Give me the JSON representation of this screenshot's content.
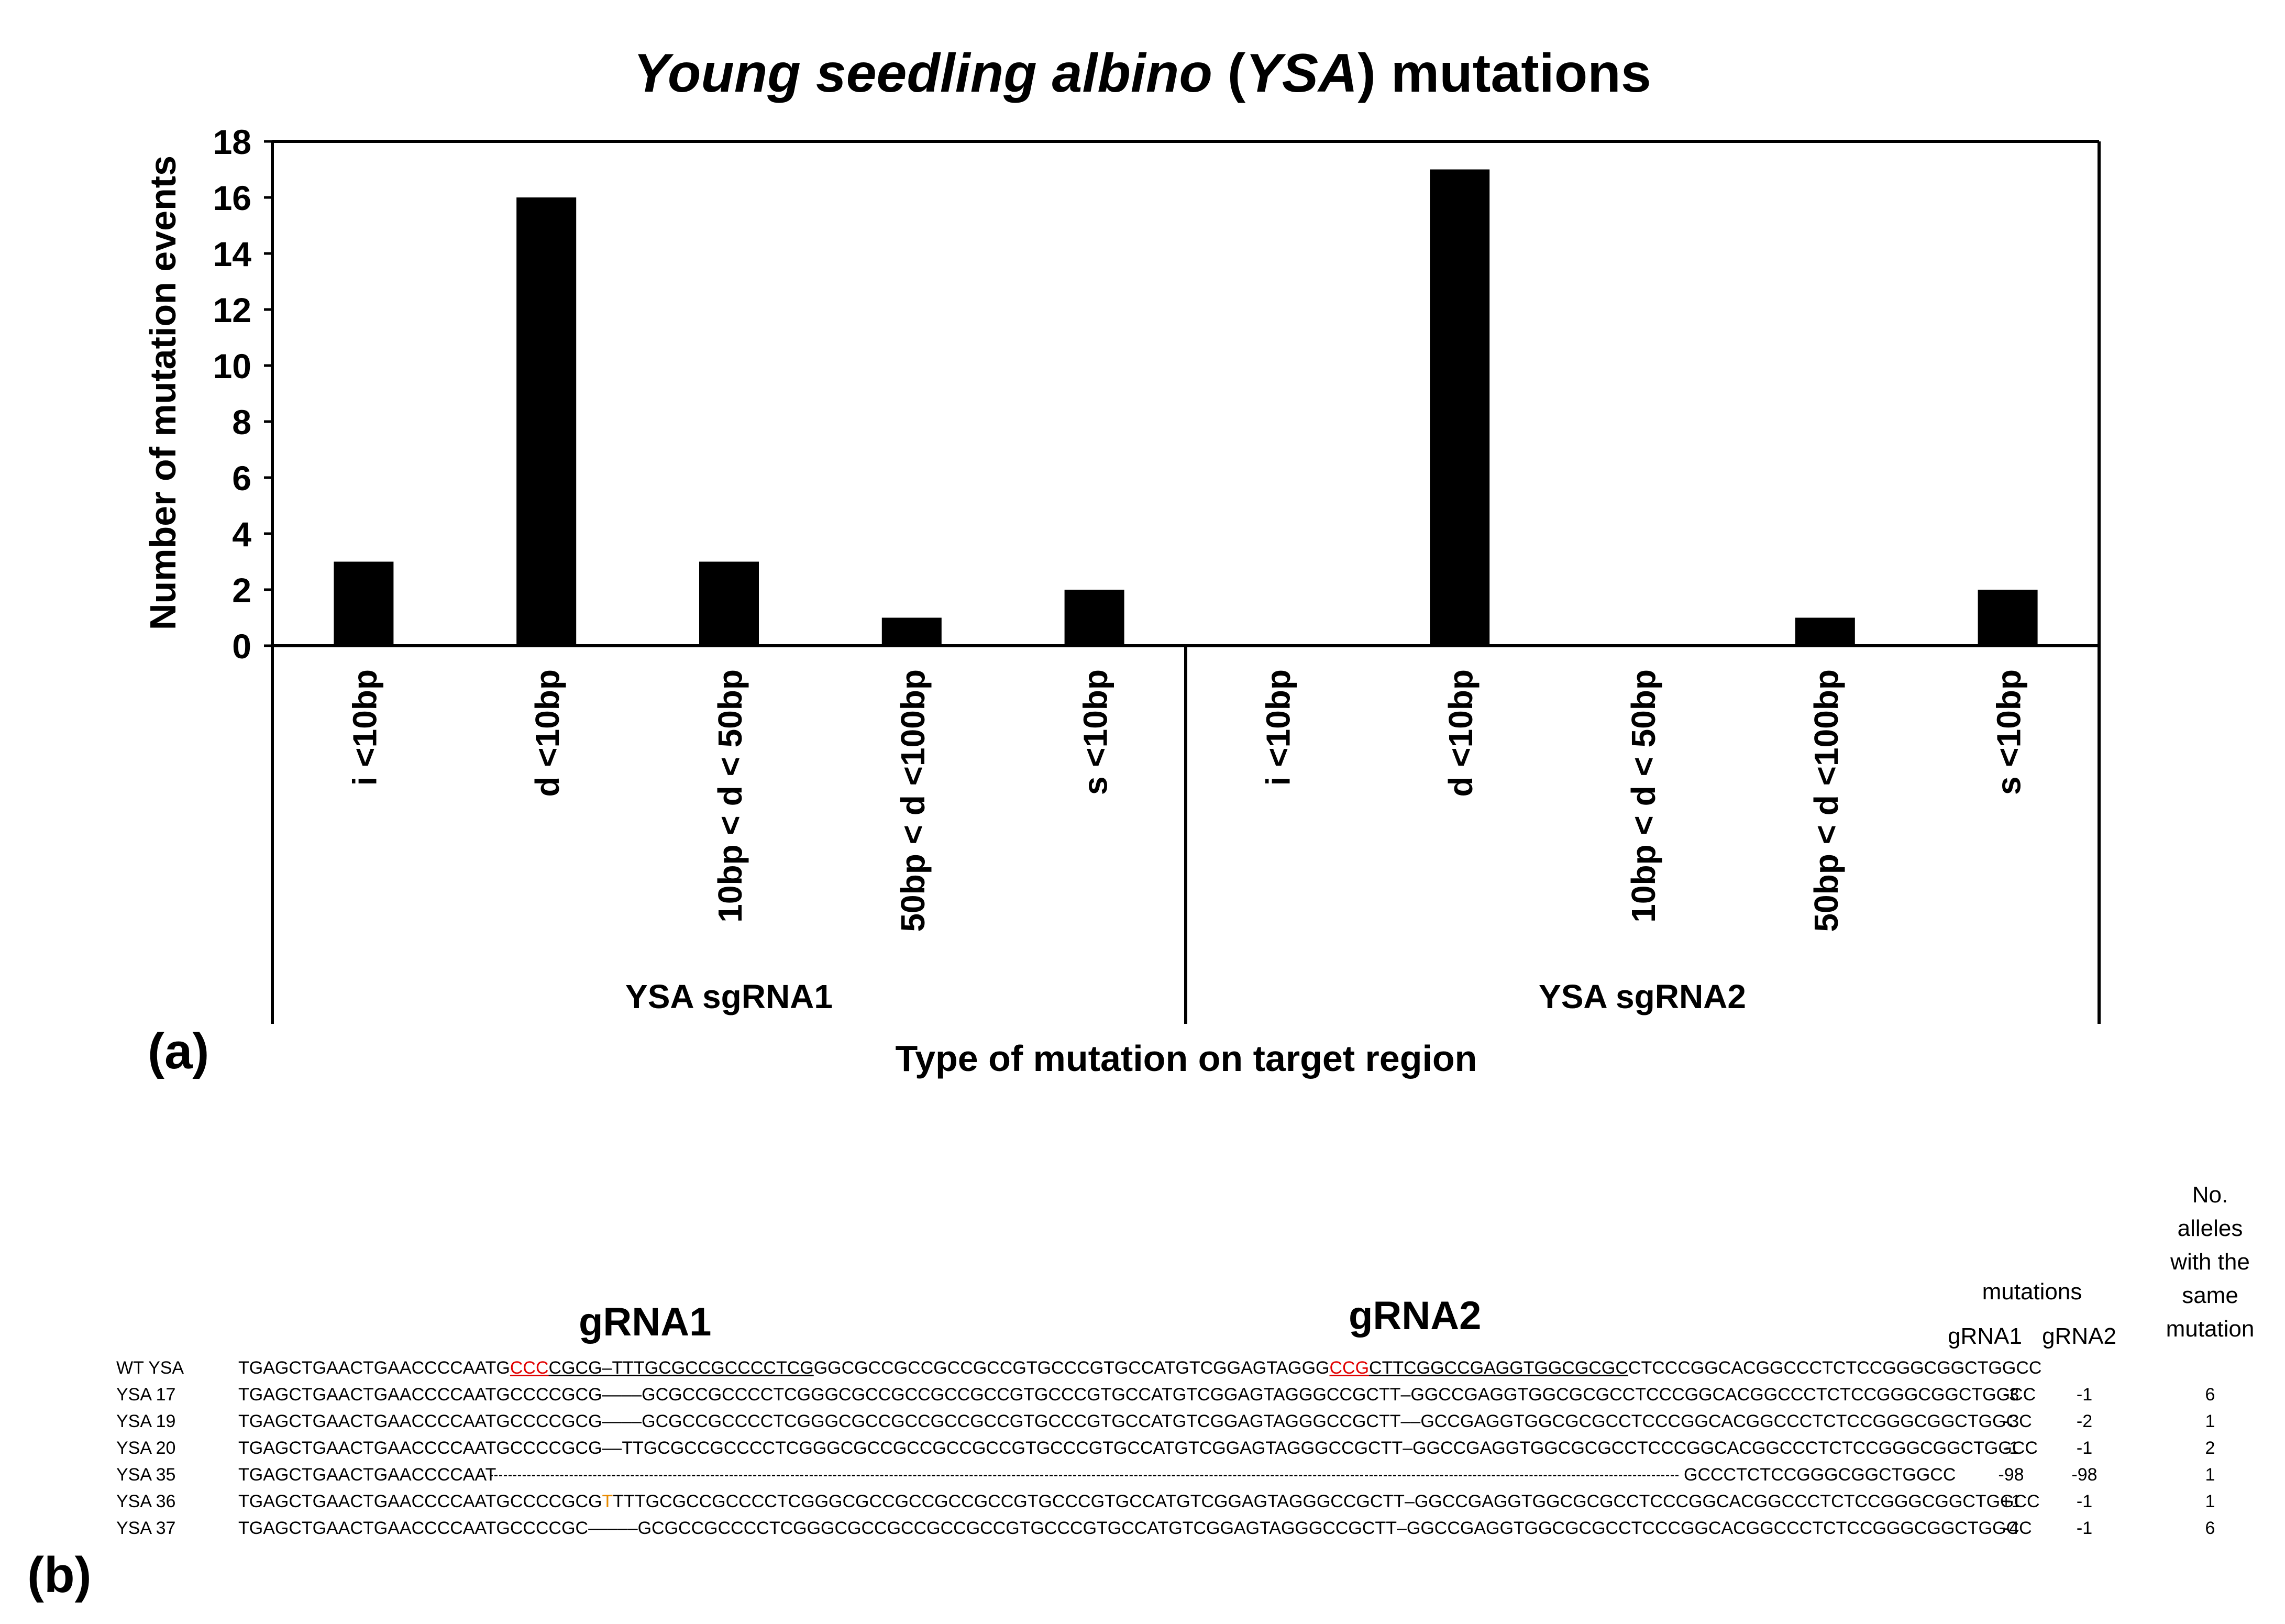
{
  "chart_data": {
    "type": "bar",
    "title_parts": [
      "Young seedling albino",
      " (",
      "YSA",
      ") mutations"
    ],
    "ylabel": "Number of mutation events",
    "xlabel": "Type of mutation on target region",
    "ylim": [
      0,
      18
    ],
    "yticks": [
      "0",
      "2",
      "4",
      "6",
      "8",
      "10",
      "12",
      "14",
      "16",
      "18"
    ],
    "groups": [
      {
        "name": "YSA sgRNA1",
        "categories": [
          "i <10bp",
          "d <10bp",
          "10bp < d < 50bp",
          "50bp < d <100bp",
          "s <10bp"
        ],
        "values": [
          3,
          16,
          3,
          1,
          2
        ]
      },
      {
        "name": "YSA sgRNA2",
        "categories": [
          "i <10bp",
          "d <10bp",
          "10bp < d < 50bp",
          "50bp < d <100bp",
          "s <10bp"
        ],
        "values": [
          0,
          17,
          0,
          1,
          2
        ]
      }
    ],
    "bar_color": "#000000"
  },
  "panels": {
    "a": "(a)",
    "b": "(b)"
  },
  "table": {
    "grna1_title": "gRNA1",
    "grna2_title": "gRNA2",
    "mutations_header": "mutations",
    "col_grna1": "gRNA1",
    "col_grna2": "gRNA2",
    "alleles_header": [
      "No.",
      "alleles",
      "with the",
      "same",
      "mutation"
    ],
    "wt": {
      "label": "WT YSA",
      "seq_parts": [
        "TGAGCTGAACTGAACCCCAATG",
        "CCC",
        "CGCG–TTTGCGCCGCCCCTCG",
        "GGCGCCGCCGCCGCCGTGCCCGTGCCATGTCGGAGTAGGG",
        "CCG",
        "CTTCGGCCGAGGTGGCGCGC",
        "CTCCCGGCACGGCCCTCTCCGGGCGGCTGGCC"
      ]
    },
    "rows": [
      {
        "label": "YSA 17",
        "seq": "TGAGCTGAACTGAACCCCAATGCCCCGCG––––GCGCCGCCCCTCGGGCGCCGCCGCCGCCGTGCCCGTGCCATGTCGGAGTAGGGCCGCTT–GGCCGAGGTGGCGCGCCTCCCGGCACGGCCCTCTCCGGGCGGCTGGCC",
        "g1": "-3",
        "g2": "-1",
        "n": "6"
      },
      {
        "label": "YSA 19",
        "seq": "TGAGCTGAACTGAACCCCAATGCCCCGCG––––GCGCCGCCCCTCGGGCGCCGCCGCCGCCGTGCCCGTGCCATGTCGGAGTAGGGCCGCTT––GCCGAGGTGGCGCGCCTCCCGGCACGGCCCTCTCCGGGCGGCTGGCC",
        "g1": "-3",
        "g2": "-2",
        "n": "1"
      },
      {
        "label": "YSA 20",
        "seq": "TGAGCTGAACTGAACCCCAATGCCCCGCG––TTGCGCCGCCCCTCGGGCGCCGCCGCCGCCGTGCCCGTGCCATGTCGGAGTAGGGCCGCTT–GGCCGAGGTGGCGCGCCTCCCGGCACGGCCCTCTCCGGGCGGCTGGCC",
        "g1": "-1",
        "g2": "-1",
        "n": "2"
      },
      {
        "label": "YSA 35",
        "seq_before": "TGAGCTGAACTGAACCCCAAT",
        "seq_after": "GCCCTCTCCGGGCGGCTGGCC",
        "g1": "-98",
        "g2": "-98",
        "n": "1"
      },
      {
        "label": "YSA 36",
        "seq_parts": [
          "TGAGCTGAACTGAACCCCAATGCCCCGCG",
          "T",
          "TTTGCGCCGCCCCTCGGGCGCCGCCGCCGCCGTGCCCGTGCCATGTCGGAGTAGGGCCGCTT–GGCCGAGGTGGCGCGCCTCCCGGCACGGCCCTCTCCGGGCGGCTGGCC"
        ],
        "g1": "+1",
        "g2": "-1",
        "n": "1"
      },
      {
        "label": "YSA 37",
        "seq": "TGAGCTGAACTGAACCCCAATGCCCCGC–––––GCGCCGCCCCTCGGGCGCCGCCGCCGCCGTGCCCGTGCCATGTCGGAGTAGGGCCGCTT–GGCCGAGGTGGCGCGCCTCCCGGCACGGCCCTCTCCGGGCGGCTGGCC",
        "g1": "-4",
        "g2": "-1",
        "n": "6"
      }
    ],
    "pam_color": "#e00000",
    "insert_color": "#e88a00"
  }
}
